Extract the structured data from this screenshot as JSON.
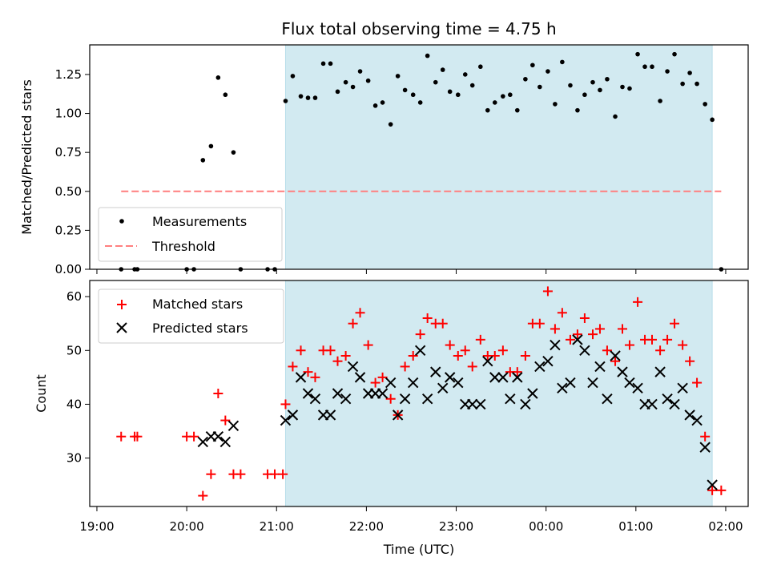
{
  "chart_data": [
    {
      "type": "scatter",
      "title": "Flux total observing time = 4.75 h",
      "xlabel": "",
      "ylabel": "Matched/Predicted stars",
      "ylim": [
        0,
        1.44
      ],
      "yticks": [
        "0.00",
        "0.25",
        "0.50",
        "0.75",
        "1.00",
        "1.25"
      ],
      "x_unit": "hours since 19:00 UTC",
      "highlight_band": {
        "x_start": 2.1,
        "x_end": 6.85,
        "color": "#add8e6"
      },
      "threshold": {
        "name": "Threshold",
        "y": 0.5,
        "x_start": 0.27,
        "x_end": 6.95,
        "color": "#ff7f7f"
      },
      "series": [
        {
          "name": "Measurements",
          "color": "#000000",
          "marker": "dot",
          "x": [
            0.27,
            0.42,
            0.45,
            1.0,
            1.08,
            1.18,
            1.27,
            1.35,
            1.43,
            1.52,
            1.6,
            1.9,
            1.98,
            2.1,
            2.18,
            2.27,
            2.35,
            2.43,
            2.52,
            2.6,
            2.68,
            2.77,
            2.85,
            2.93,
            3.02,
            3.1,
            3.18,
            3.27,
            3.35,
            3.43,
            3.52,
            3.6,
            3.68,
            3.77,
            3.85,
            3.93,
            4.02,
            4.1,
            4.18,
            4.27,
            4.35,
            4.43,
            4.52,
            4.6,
            4.68,
            4.77,
            4.85,
            4.93,
            5.02,
            5.1,
            5.18,
            5.27,
            5.35,
            5.43,
            5.52,
            5.6,
            5.68,
            5.77,
            5.85,
            5.93,
            6.02,
            6.1,
            6.18,
            6.27,
            6.35,
            6.43,
            6.52,
            6.6,
            6.68,
            6.77,
            6.85,
            6.95
          ],
          "y": [
            0.0,
            0.0,
            0.0,
            0.0,
            0.0,
            0.7,
            0.79,
            1.23,
            1.12,
            0.75,
            0.0,
            0.0,
            0.0,
            1.08,
            1.24,
            1.11,
            1.1,
            1.1,
            1.32,
            1.32,
            1.14,
            1.2,
            1.17,
            1.27,
            1.21,
            1.05,
            1.07,
            0.93,
            1.24,
            1.15,
            1.12,
            1.07,
            1.37,
            1.2,
            1.28,
            1.14,
            1.12,
            1.25,
            1.18,
            1.3,
            1.02,
            1.07,
            1.11,
            1.12,
            1.02,
            1.22,
            1.31,
            1.17,
            1.27,
            1.06,
            1.33,
            1.18,
            1.02,
            1.12,
            1.2,
            1.15,
            1.22,
            0.98,
            1.17,
            1.16,
            1.38,
            1.3,
            1.3,
            1.08,
            1.27,
            1.38,
            1.19,
            1.26,
            1.19,
            1.06,
            0.96,
            0.0
          ]
        }
      ],
      "legend": [
        "Measurements",
        "Threshold"
      ],
      "legend_position": "lower-left",
      "grid": false
    },
    {
      "type": "scatter",
      "title": "",
      "xlabel": "Time (UTC)",
      "ylabel": "Count",
      "ylim": [
        21,
        63
      ],
      "yticks": [
        "30",
        "40",
        "50",
        "60"
      ],
      "xlim": [
        -0.08,
        7.25
      ],
      "xticks": [
        "19:00",
        "20:00",
        "21:00",
        "22:00",
        "23:00",
        "00:00",
        "01:00",
        "02:00"
      ],
      "highlight_band": {
        "x_start": 2.1,
        "x_end": 6.85,
        "color": "#add8e6"
      },
      "series": [
        {
          "name": "Matched stars",
          "color": "#ff0000",
          "marker": "plus",
          "x": [
            0.27,
            0.42,
            0.45,
            1.0,
            1.08,
            1.18,
            1.27,
            1.35,
            1.43,
            1.52,
            1.6,
            1.9,
            1.98,
            2.07,
            2.1,
            2.18,
            2.27,
            2.35,
            2.43,
            2.52,
            2.6,
            2.68,
            2.77,
            2.85,
            2.93,
            3.02,
            3.1,
            3.18,
            3.27,
            3.35,
            3.43,
            3.52,
            3.6,
            3.68,
            3.77,
            3.85,
            3.93,
            4.02,
            4.1,
            4.18,
            4.27,
            4.35,
            4.43,
            4.52,
            4.6,
            4.68,
            4.77,
            4.85,
            4.93,
            5.02,
            5.1,
            5.18,
            5.27,
            5.35,
            5.43,
            5.52,
            5.6,
            5.68,
            5.77,
            5.85,
            5.93,
            6.02,
            6.1,
            6.18,
            6.27,
            6.35,
            6.43,
            6.52,
            6.6,
            6.68,
            6.77,
            6.85,
            6.95
          ],
          "y": [
            34,
            34,
            34,
            34,
            34,
            23,
            27,
            42,
            37,
            27,
            27,
            27,
            27,
            27,
            40,
            47,
            50,
            46,
            45,
            50,
            50,
            48,
            49,
            55,
            57,
            51,
            44,
            45,
            41,
            38,
            47,
            49,
            53,
            56,
            55,
            55,
            51,
            49,
            50,
            47,
            52,
            49,
            49,
            50,
            46,
            46,
            49,
            55,
            55,
            61,
            54,
            57,
            52,
            53,
            56,
            53,
            54,
            50,
            48,
            54,
            51,
            59,
            52,
            52,
            50,
            52,
            55,
            51,
            48,
            44,
            34,
            24,
            24
          ]
        },
        {
          "name": "Predicted stars",
          "color": "#000000",
          "marker": "x",
          "x": [
            1.18,
            1.27,
            1.35,
            1.43,
            1.52,
            2.1,
            2.18,
            2.27,
            2.35,
            2.43,
            2.52,
            2.6,
            2.68,
            2.77,
            2.85,
            2.93,
            3.02,
            3.1,
            3.18,
            3.27,
            3.35,
            3.43,
            3.52,
            3.6,
            3.68,
            3.77,
            3.85,
            3.93,
            4.02,
            4.1,
            4.18,
            4.27,
            4.35,
            4.43,
            4.52,
            4.6,
            4.68,
            4.77,
            4.85,
            4.93,
            5.02,
            5.1,
            5.18,
            5.27,
            5.35,
            5.43,
            5.52,
            5.6,
            5.68,
            5.77,
            5.85,
            5.93,
            6.02,
            6.1,
            6.18,
            6.27,
            6.35,
            6.43,
            6.52,
            6.6,
            6.68,
            6.77,
            6.85
          ],
          "y": [
            33,
            34,
            34,
            33,
            36,
            37,
            38,
            45,
            42,
            41,
            38,
            38,
            42,
            41,
            47,
            45,
            42,
            42,
            42,
            44,
            38,
            41,
            44,
            50,
            41,
            46,
            43,
            45,
            44,
            40,
            40,
            40,
            48,
            45,
            45,
            41,
            45,
            40,
            42,
            47,
            48,
            51,
            43,
            44,
            52,
            50,
            44,
            47,
            41,
            49,
            46,
            44,
            43,
            40,
            40,
            46,
            41,
            40,
            43,
            38,
            37,
            32,
            25
          ]
        }
      ],
      "legend": [
        "Matched stars",
        "Predicted stars"
      ],
      "legend_position": "upper-left",
      "grid": false
    }
  ]
}
